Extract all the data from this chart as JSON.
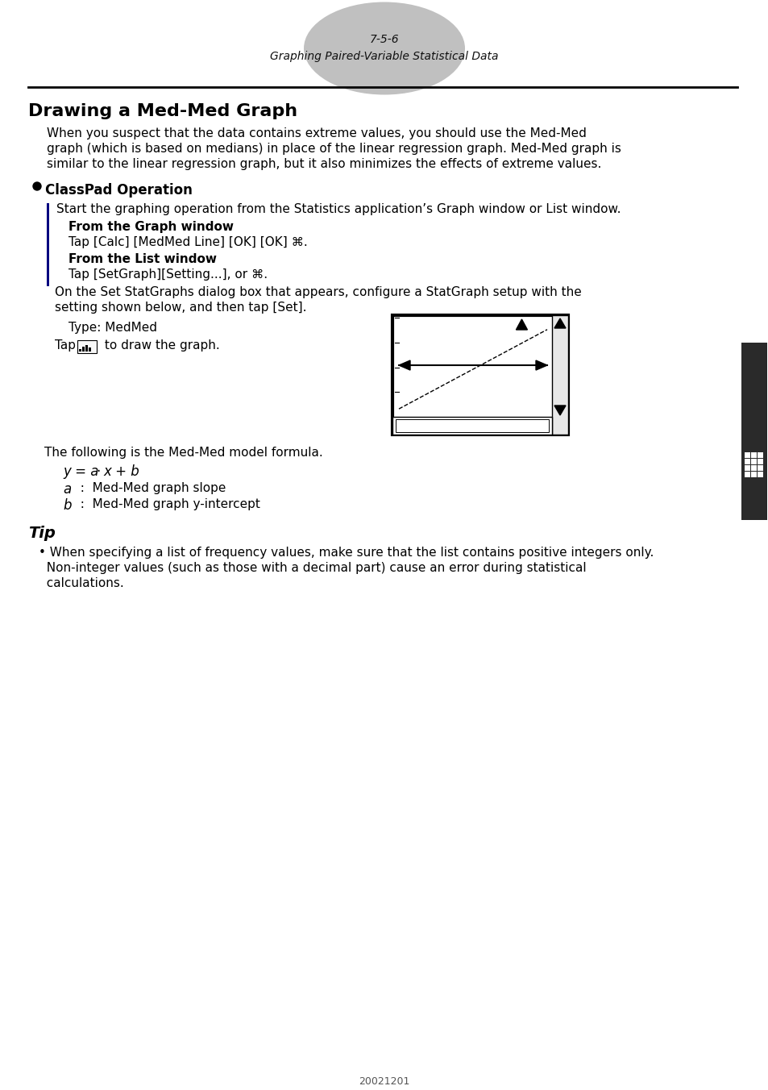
{
  "page_number": "7-5-6",
  "page_subtitle": "Graphing Paired-Variable Statistical Data",
  "section_title": "Drawing a Med-Med Graph",
  "para1_lines": [
    "When you suspect that the data contains extreme values, you should use the Med-Med",
    "graph (which is based on medians) in place of the linear regression graph. Med-Med graph is",
    "similar to the linear regression graph, but it also minimizes the effects of extreme values."
  ],
  "bullet_title": "ClassPad Operation",
  "indent1": "Start the graphing operation from the Statistics application’s Graph window or List window.",
  "bold1": "From the Graph window",
  "text1": "Tap [Calc] [MedMed Line] [OK] [OK] ⌘.",
  "bold2": "From the List window",
  "text2": "Tap [SetGraph][Setting...], or ⌘.",
  "para2_lines": [
    "On the Set StatGraphs dialog box that appears, configure a StatGraph setup with the",
    "setting shown below, and then tap [Set]."
  ],
  "type_line": "Type: MedMed",
  "tap_before": "Tap ",
  "tap_after": " to draw the graph.",
  "formula_intro": "The following is the Med-Med model formula.",
  "a_desc": ":  Med-Med graph slope",
  "b_desc": ":  Med-Med graph y-intercept",
  "tip_title": "Tip",
  "tip_lines": [
    "• When specifying a list of frequency values, make sure that the list contains positive integers only.",
    "  Non-integer values (such as those with a decimal part) cause an error during statistical",
    "  calculations."
  ],
  "footer": "20021201",
  "bg_color": "#ffffff",
  "ellipse_color": "#c0c0c0",
  "sidebar_dark": "#2a2a2a",
  "left_bar_color": "#000080"
}
